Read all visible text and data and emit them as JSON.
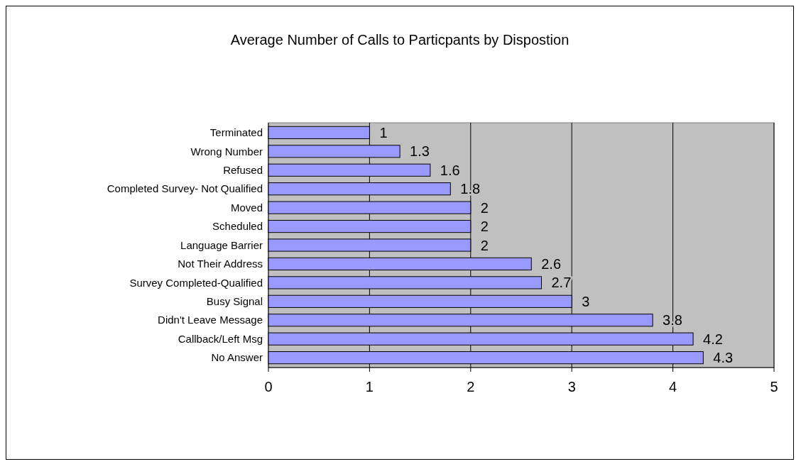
{
  "chart_data": {
    "type": "bar",
    "orientation": "horizontal",
    "title": "Average Number of Calls to Particpants by Dispostion",
    "categories": [
      "Terminated",
      "Wrong Number",
      "Refused",
      "Completed Survey- Not Qualified",
      "Moved",
      "Scheduled",
      "Language Barrier",
      "Not Their Address",
      "Survey Completed-Qualified",
      "Busy Signal",
      "Didn't Leave Message",
      "Callback/Left Msg",
      "No Answer"
    ],
    "values": [
      1,
      1.3,
      1.6,
      1.8,
      2,
      2,
      2,
      2.6,
      2.7,
      3,
      3.8,
      4.2,
      4.3
    ],
    "color": "#9999ff",
    "xlim": [
      0,
      5
    ],
    "xticks": [
      0,
      1,
      2,
      3,
      4,
      5
    ],
    "grid": "x",
    "data_labels": true
  }
}
